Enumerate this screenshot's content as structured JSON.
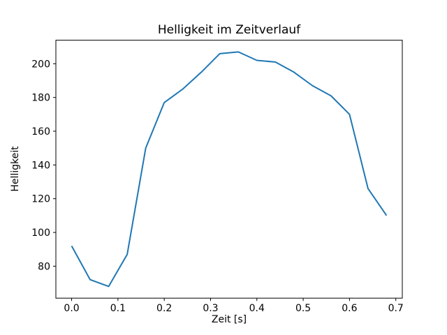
{
  "chart_data": {
    "type": "line",
    "title": "Helligkeit im Zeitverlauf",
    "xlabel": "Zeit [s]",
    "ylabel": "Helligkeit",
    "x": [
      0.0,
      0.04,
      0.08,
      0.12,
      0.16,
      0.2,
      0.24,
      0.28,
      0.32,
      0.36,
      0.4,
      0.44,
      0.48,
      0.52,
      0.56,
      0.6,
      0.64,
      0.68
    ],
    "y": [
      92,
      72,
      68,
      87,
      150,
      177,
      185,
      195,
      206,
      207,
      202,
      201,
      195,
      187,
      181,
      170,
      126,
      110
    ],
    "xlim": [
      -0.034,
      0.714
    ],
    "ylim": [
      61.05,
      213.95
    ],
    "xticks": [
      0.0,
      0.1,
      0.2,
      0.3,
      0.4,
      0.5,
      0.6,
      0.7
    ],
    "xtick_labels": [
      "0.0",
      "0.1",
      "0.2",
      "0.3",
      "0.4",
      "0.5",
      "0.6",
      "0.7"
    ],
    "yticks": [
      80,
      100,
      120,
      140,
      160,
      180,
      200
    ],
    "ytick_labels": [
      "80",
      "100",
      "120",
      "140",
      "160",
      "180",
      "200"
    ],
    "line_color": "#1f77b4",
    "axis_color": "#000000",
    "background_color": "#ffffff",
    "grid": false,
    "legend": null
  }
}
